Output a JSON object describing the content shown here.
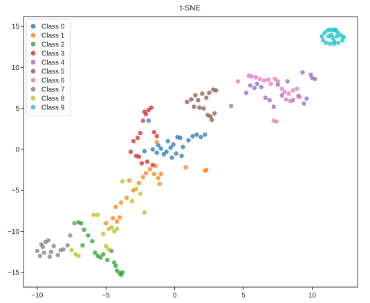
{
  "chart_data": {
    "type": "scatter",
    "title": "t-SNE",
    "xlabel": "",
    "ylabel": "",
    "xlim": [
      -11,
      13.3
    ],
    "ylim": [
      -16.8,
      16.2
    ],
    "xticks": [
      -10,
      -5,
      0,
      5,
      10
    ],
    "yticks": [
      -15,
      -10,
      -5,
      0,
      5,
      10,
      15
    ],
    "grid": false,
    "legend_position": "top-left",
    "series": [
      {
        "name": "Class 0",
        "color": "#1f77b4",
        "x": [
          -2.2,
          -1.6,
          -1.3,
          -1.2,
          -1.0,
          -0.8,
          -0.6,
          -0.3,
          -0.1,
          0.1,
          0.2,
          0.4,
          0.5,
          0.6,
          1.0,
          1.3,
          1.6,
          1.9,
          2.2,
          -0.5,
          -0.2,
          -1.9
        ],
        "y": [
          -0.2,
          0.0,
          -0.4,
          0.5,
          0.1,
          -0.6,
          -0.3,
          0.2,
          0.6,
          -0.5,
          1.5,
          1.4,
          -0.8,
          0.3,
          1.1,
          1.6,
          1.8,
          1.5,
          1.8,
          1.0,
          -1.0,
          3.5
        ]
      },
      {
        "name": "Class 1",
        "color": "#ff7f0e",
        "x": [
          -4.3,
          -3.9,
          -3.5,
          -3.0,
          -2.6,
          -2.3,
          -2.1,
          -1.8,
          -1.4,
          -1.2,
          -1.1,
          -1.0,
          0.8,
          2.2,
          2.3,
          -1.3,
          -5.0,
          -4.5,
          -4.2,
          -4.0,
          -1.5,
          -3.3
        ],
        "y": [
          -7.0,
          -6.5,
          -5.9,
          -5.0,
          -4.1,
          -3.4,
          -2.9,
          -2.4,
          -2.0,
          -3.5,
          -4.2,
          -3.0,
          -2.2,
          -2.6,
          -2.5,
          0.9,
          -9.0,
          -8.4,
          -8.8,
          -8.3,
          -3.0,
          -3.8
        ]
      },
      {
        "name": "Class 2",
        "color": "#2ca02c",
        "x": [
          -6.8,
          -6.6,
          -6.3,
          -6.0,
          -5.8,
          -5.6,
          -5.4,
          -5.2,
          -4.9,
          -4.6,
          -4.4,
          -4.2,
          -4.0,
          -3.9,
          -3.8,
          -4.3,
          -7.0,
          -6.7
        ],
        "y": [
          -9.0,
          -9.8,
          -10.5,
          -11.2,
          -12.6,
          -13.0,
          -13.2,
          -12.8,
          -13.5,
          -12.4,
          -13.8,
          -14.8,
          -15.1,
          -15.3,
          -15.0,
          -14.2,
          -8.9,
          -11.7
        ]
      },
      {
        "name": "Class 3",
        "color": "#d62728",
        "x": [
          -3.2,
          -3.0,
          -2.7,
          -2.5,
          -2.3,
          -2.1,
          -1.9,
          -1.7,
          -1.5,
          -1.3,
          -2.8,
          -2.4,
          -2.0,
          -1.6,
          -2.6,
          -2.2
        ],
        "y": [
          -0.3,
          1.0,
          1.4,
          2.0,
          3.5,
          4.3,
          4.8,
          5.1,
          2.1,
          1.6,
          -0.8,
          -1.7,
          -1.5,
          -1.9,
          -0.9,
          4.6
        ]
      },
      {
        "name": "Class 4",
        "color": "#9467bd",
        "x": [
          4.1,
          5.2,
          5.5,
          5.8,
          6.0,
          6.3,
          6.6,
          6.9,
          7.2,
          7.5,
          7.8,
          8.2,
          8.6,
          9.0,
          9.3,
          9.6,
          9.9,
          10.2,
          10.0,
          9.4
        ],
        "y": [
          5.3,
          6.9,
          7.8,
          7.5,
          8.0,
          7.6,
          6.3,
          6.0,
          5.2,
          7.9,
          6.6,
          8.3,
          6.0,
          6.5,
          9.4,
          6.2,
          9.1,
          8.6,
          8.7,
          5.6
        ]
      },
      {
        "name": "Class 5",
        "color": "#8c564b",
        "x": [
          0.9,
          1.2,
          1.4,
          1.5,
          1.7,
          1.8,
          2.0,
          2.1,
          2.3,
          2.4,
          2.6,
          2.7,
          2.8,
          3.0,
          2.5,
          2.9
        ],
        "y": [
          5.8,
          6.1,
          5.2,
          6.6,
          6.0,
          5.1,
          6.8,
          5.0,
          6.3,
          4.2,
          4.0,
          3.6,
          7.3,
          7.2,
          6.9,
          4.4
        ]
      },
      {
        "name": "Class 6",
        "color": "#e377c2",
        "x": [
          4.6,
          5.4,
          5.6,
          5.9,
          6.2,
          6.5,
          6.8,
          7.0,
          7.3,
          7.5,
          7.8,
          8.0,
          8.3,
          8.6,
          8.9,
          9.1,
          8.4,
          8.1,
          7.2,
          7.4
        ],
        "y": [
          8.3,
          9.0,
          8.9,
          8.8,
          8.6,
          8.4,
          8.5,
          8.0,
          8.6,
          8.3,
          7.4,
          7.0,
          6.8,
          7.2,
          7.4,
          6.4,
          5.9,
          6.1,
          3.5,
          3.4
        ]
      },
      {
        "name": "Class 7",
        "color": "#7f7f7f",
        "x": [
          -10.0,
          -9.8,
          -9.6,
          -9.4,
          -9.2,
          -9.0,
          -8.8,
          -8.5,
          -8.1,
          -7.8,
          -7.6,
          -7.3,
          -9.5,
          -9.7,
          -9.1,
          -8.3
        ],
        "y": [
          -12.4,
          -13.0,
          -11.9,
          -11.3,
          -11.1,
          -12.5,
          -11.8,
          -12.9,
          -12.2,
          -11.7,
          -10.5,
          -9.0,
          -12.6,
          -11.6,
          -13.1,
          -12.3
        ]
      },
      {
        "name": "Class 8",
        "color": "#bcbd22",
        "x": [
          -7.2,
          -7.0,
          -5.9,
          -5.6,
          -5.2,
          -4.8,
          -4.6,
          -4.4,
          -4.2,
          -3.8,
          -3.1,
          -2.8,
          -2.5,
          -2.2,
          -5.0,
          -4.8,
          -7.5
        ],
        "y": [
          -12.8,
          -13.0,
          -8.0,
          -8.0,
          -10.3,
          -9.7,
          -9.5,
          -10.0,
          -9.7,
          -3.9,
          -6.3,
          -4.8,
          -5.4,
          -7.7,
          -11.8,
          -12.2,
          -12.3
        ]
      },
      {
        "name": "Class 9",
        "color": "#17becf",
        "x": [
          10.7,
          10.9,
          11.1,
          11.3,
          11.5,
          11.7,
          11.9,
          12.1,
          12.3,
          12.2,
          11.9,
          11.6,
          11.3,
          11.0,
          10.8,
          11.2,
          11.5,
          11.8,
          11.4,
          11.6,
          11.7
        ],
        "y": [
          13.8,
          14.2,
          14.5,
          14.6,
          14.6,
          14.5,
          14.2,
          13.9,
          13.7,
          13.3,
          13.0,
          12.9,
          12.9,
          13.0,
          13.3,
          13.8,
          13.6,
          13.8,
          14.0,
          13.2,
          14.6
        ]
      }
    ]
  }
}
